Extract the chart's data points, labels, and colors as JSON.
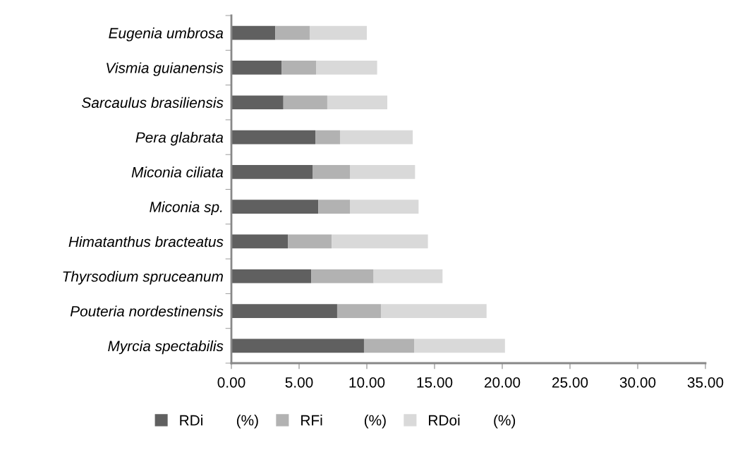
{
  "chart_data": {
    "type": "bar",
    "orientation": "horizontal",
    "stacked": true,
    "categories": [
      "Eugenia umbrosa",
      "Vismia guianensis",
      "Sarcaulus brasiliensis",
      "Pera glabrata",
      "Miconia ciliata",
      "Miconia sp.",
      "Himatanthus bracteatus",
      "Thyrsodium spruceanum",
      "Pouteria nordestinensis",
      "Myrcia spectabilis"
    ],
    "series": [
      {
        "name": "RDi        (%)",
        "color": "#606060",
        "values": [
          3.24,
          3.7,
          3.84,
          6.2,
          5.99,
          6.42,
          4.17,
          5.89,
          7.81,
          9.79
        ]
      },
      {
        "name": "RFi          (%)",
        "color": "#b2b2b2",
        "values": [
          2.54,
          2.55,
          3.24,
          1.82,
          2.76,
          2.33,
          3.23,
          4.61,
          3.23,
          3.7
        ]
      },
      {
        "name": "RDoi        (%)",
        "color": "#d9d9d9",
        "values": [
          4.22,
          4.51,
          4.43,
          5.37,
          4.81,
          5.07,
          7.11,
          5.09,
          7.8,
          6.71
        ]
      }
    ],
    "xlim": [
      0,
      35
    ],
    "xticks": [
      {
        "value": 0,
        "label": "0.00"
      },
      {
        "value": 5,
        "label": "5.00"
      },
      {
        "value": 10,
        "label": "10.00"
      },
      {
        "value": 15,
        "label": "15.00"
      },
      {
        "value": 20,
        "label": "20.00"
      },
      {
        "value": 25,
        "label": "25.00"
      },
      {
        "value": 30,
        "label": "30.00"
      },
      {
        "value": 35,
        "label": "35.00"
      }
    ],
    "grid": false,
    "legend": "bottom"
  }
}
